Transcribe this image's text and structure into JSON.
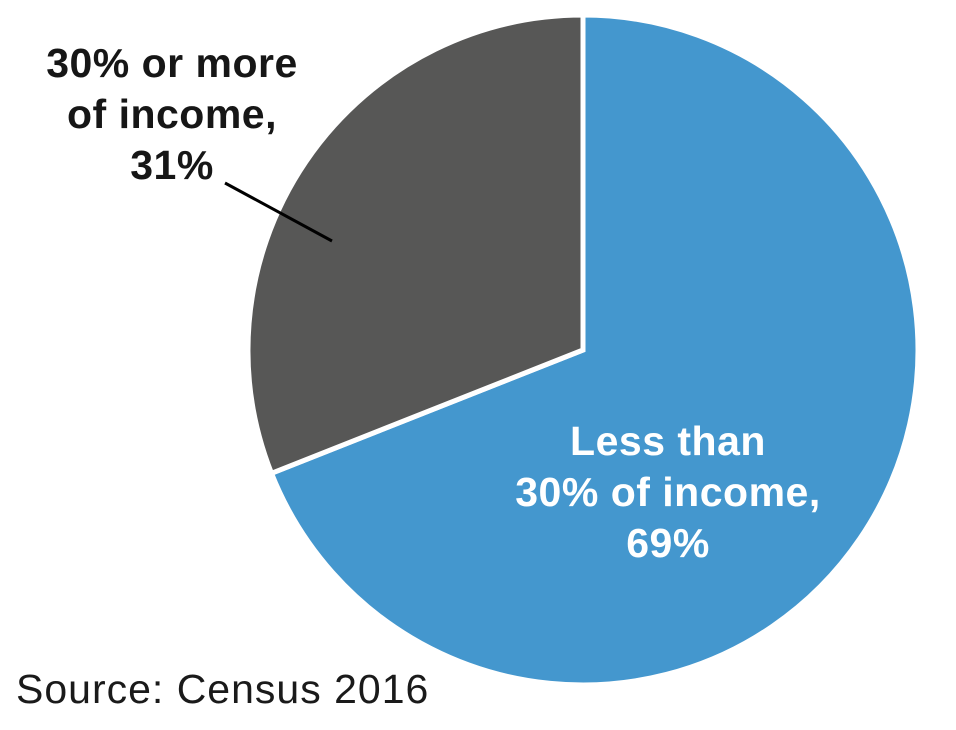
{
  "chart_data": {
    "type": "pie",
    "title": "",
    "categories": [
      "Less than 30% of income",
      "30% or more of income"
    ],
    "values": [
      69,
      31
    ],
    "slices": [
      {
        "label": "Less than 30% of income",
        "value": 69,
        "percent_label": "69%",
        "color": "#4497ce",
        "label_lines": [
          "Less than",
          "30% of income,",
          "69%"
        ],
        "label_placement": "inside"
      },
      {
        "label": "30% or more of income",
        "value": 31,
        "percent_label": "31%",
        "color": "#575756",
        "label_lines": [
          "30% or more",
          "of income,",
          "31%"
        ],
        "label_placement": "outside-with-leader-line"
      }
    ],
    "start_angle_deg": 0,
    "direction": "clockwise",
    "legend_position": "none",
    "grid": false
  },
  "source_note": "Source: Census 2016",
  "colors": {
    "background": "#ffffff",
    "slice_blue": "#4497ce",
    "slice_gray": "#575756",
    "separator_stroke": "#ffffff",
    "leader_line": "#000000",
    "label_dark_text": "#161616",
    "label_light_text": "#ffffff"
  }
}
